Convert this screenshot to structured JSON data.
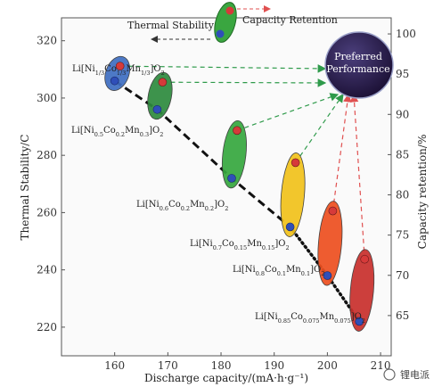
{
  "chart_data": {
    "type": "scatter",
    "title": "",
    "xlabel": "Discharge capacity/(mA·h·g⁻¹)",
    "ylabel_left": "Thermal Stability/C",
    "ylabel_right": "Capacity retention/%",
    "xlim": [
      150,
      212
    ],
    "ylim_left": [
      210,
      328
    ],
    "ylim_right": [
      60,
      102
    ],
    "x_ticks": [
      160,
      170,
      180,
      190,
      200,
      210
    ],
    "y_left_ticks": [
      220,
      240,
      260,
      280,
      300,
      320
    ],
    "y_right_ticks": [
      65,
      70,
      75,
      80,
      85,
      90,
      95,
      100
    ],
    "legend": {
      "thermal": "Thermal Stability",
      "capacity": "Capacity Retention",
      "target": [
        "Preferred",
        "Performance"
      ]
    },
    "materials": [
      {
        "name": "LiNi1/3Co1/3Mn1/3O2",
        "label": [
          "Li[Ni",
          "1/3",
          "Co",
          "1/3",
          "Mn",
          "1/3",
          "]O",
          "2"
        ],
        "capacity": 160,
        "thermal": 306,
        "retention": 96,
        "color": "#3f6fc2"
      },
      {
        "name": "LiNi0.5Co0.2Mn0.3O2",
        "label": [
          "Li[Ni",
          "0.5",
          "Co",
          "0.2",
          "Mn",
          "0.3",
          "]O",
          "2"
        ],
        "capacity": 168,
        "thermal": 296,
        "retention": 94,
        "color": "#2e8b3e"
      },
      {
        "name": "LiNi0.6Co0.2Mn0.2O2",
        "label": [
          "Li[Ni",
          "0.6",
          "Co",
          "0.2",
          "Mn",
          "0.2",
          "]O",
          "2"
        ],
        "capacity": 182,
        "thermal": 272,
        "retention": 88,
        "color": "#36a83f"
      },
      {
        "name": "LiNi0.7Co0.15Mn0.15O2",
        "label": [
          "Li[Ni",
          "0.7",
          "Co",
          "0.15",
          "Mn",
          "0.15",
          "]O",
          "2"
        ],
        "capacity": 193,
        "thermal": 255,
        "retention": 84,
        "color": "#f2c21b"
      },
      {
        "name": "LiNi0.8Co0.1Mn0.1O2",
        "label": [
          "Li[Ni",
          "0.8",
          "Co",
          "0.1",
          "Mn",
          "0.1",
          "]O",
          "2"
        ],
        "capacity": 200,
        "thermal": 238,
        "retention": 78,
        "color": "#ee4f1f"
      },
      {
        "name": "LiNi0.85Co0.075Mn0.075O2",
        "label": [
          "Li[Ni",
          "0.85",
          "Co",
          "0.075",
          "Mn",
          "0.075",
          "]O",
          "2"
        ],
        "capacity": 206,
        "thermal": 222,
        "retention": 72,
        "color": "#c9302c"
      }
    ]
  },
  "watermark": "锂电派",
  "colors": {
    "thermal_dot": "#2f4fb8",
    "retention_dot": "#d63a3a",
    "arrow": "#2e9a4a",
    "arrow_red": "#e05050",
    "target": "#2b1a4a"
  }
}
